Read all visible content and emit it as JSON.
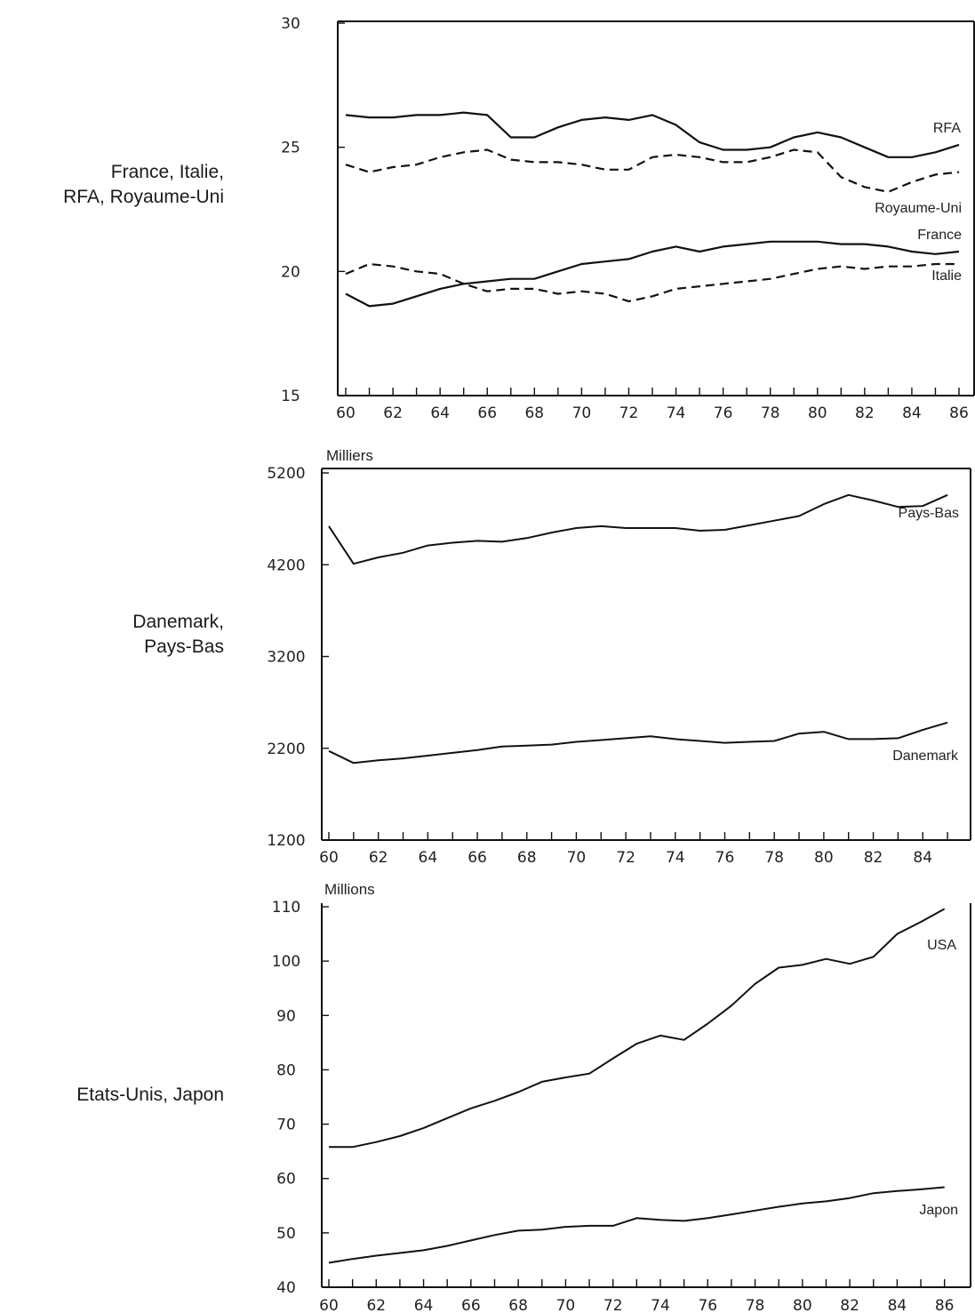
{
  "chart_data": [
    {
      "type": "line",
      "row_label": [
        "France, Italie,",
        "RFA, Royaume-Uni"
      ],
      "unit": "",
      "x_ticks": [
        "60",
        "62",
        "64",
        "66",
        "68",
        "70",
        "72",
        "74",
        "76",
        "78",
        "80",
        "82",
        "84",
        "86"
      ],
      "y_ticks": [
        "15",
        "20",
        "25",
        "30"
      ],
      "xlim": [
        60,
        86
      ],
      "ylim": [
        15,
        30
      ],
      "grid": false,
      "x": [
        60,
        61,
        62,
        63,
        64,
        65,
        66,
        67,
        68,
        69,
        70,
        71,
        72,
        73,
        74,
        75,
        76,
        77,
        78,
        79,
        80,
        81,
        82,
        83,
        84,
        85,
        86
      ],
      "series": [
        {
          "name": "RFA",
          "dash": "solid",
          "values": [
            26.3,
            26.2,
            26.2,
            26.3,
            26.3,
            26.4,
            26.3,
            25.4,
            25.4,
            25.8,
            26.1,
            26.2,
            26.1,
            26.3,
            25.9,
            25.2,
            24.9,
            24.9,
            25.0,
            25.4,
            25.6,
            25.4,
            25.0,
            24.6,
            24.6,
            24.8,
            25.1
          ]
        },
        {
          "name": "Royaume-Uni",
          "dash": "dashed",
          "values": [
            24.3,
            24.0,
            24.2,
            24.3,
            24.6,
            24.8,
            24.9,
            24.5,
            24.4,
            24.4,
            24.3,
            24.1,
            24.1,
            24.6,
            24.7,
            24.6,
            24.4,
            24.4,
            24.6,
            24.9,
            24.8,
            23.8,
            23.4,
            23.2,
            23.6,
            23.9,
            24.0
          ]
        },
        {
          "name": "France",
          "dash": "solid",
          "values": [
            19.1,
            18.6,
            18.7,
            19.0,
            19.3,
            19.5,
            19.6,
            19.7,
            19.7,
            20.0,
            20.3,
            20.4,
            20.5,
            20.8,
            21.0,
            20.8,
            21.0,
            21.1,
            21.2,
            21.2,
            21.2,
            21.1,
            21.1,
            21.0,
            20.8,
            20.7,
            20.8
          ]
        },
        {
          "name": "Italie",
          "dash": "dashed",
          "values": [
            19.9,
            20.3,
            20.2,
            20.0,
            19.9,
            19.5,
            19.2,
            19.3,
            19.3,
            19.1,
            19.2,
            19.1,
            18.8,
            19.0,
            19.3,
            19.4,
            19.5,
            19.6,
            19.7,
            19.9,
            20.1,
            20.2,
            20.1,
            20.2,
            20.2,
            20.3,
            20.3
          ]
        }
      ]
    },
    {
      "type": "line",
      "row_label": [
        "Danemark,",
        "Pays-Bas"
      ],
      "unit": "Milliers",
      "x_ticks": [
        "60",
        "62",
        "64",
        "66",
        "68",
        "70",
        "72",
        "74",
        "76",
        "78",
        "80",
        "82",
        "84"
      ],
      "y_ticks": [
        "1200",
        "2200",
        "3200",
        "4200",
        "5200"
      ],
      "xlim": [
        60,
        85.5
      ],
      "ylim": [
        1200,
        5200
      ],
      "grid": false,
      "x": [
        60,
        61,
        62,
        63,
        64,
        65,
        66,
        67,
        68,
        69,
        70,
        71,
        72,
        73,
        74,
        75,
        76,
        77,
        78,
        79,
        80,
        81,
        82,
        83,
        84,
        85
      ],
      "series": [
        {
          "name": "Pays-Bas",
          "dash": "solid",
          "values": [
            4620,
            4210,
            4280,
            4330,
            4410,
            4440,
            4460,
            4450,
            4490,
            4550,
            4600,
            4620,
            4600,
            4600,
            4600,
            4570,
            4580,
            4630,
            4680,
            4730,
            4860,
            4960,
            4900,
            4830,
            4840,
            4960
          ]
        },
        {
          "name": "Danemark",
          "dash": "solid",
          "values": [
            2170,
            2040,
            2070,
            2090,
            2120,
            2150,
            2180,
            2220,
            2230,
            2240,
            2270,
            2290,
            2310,
            2330,
            2300,
            2280,
            2260,
            2270,
            2280,
            2360,
            2380,
            2300,
            2300,
            2310,
            2400,
            2480
          ]
        }
      ]
    },
    {
      "type": "line",
      "row_label": [
        "Etats-Unis, Japon"
      ],
      "unit": "Millions",
      "x_ticks": [
        "60",
        "62",
        "64",
        "66",
        "68",
        "70",
        "72",
        "74",
        "76",
        "78",
        "80",
        "82",
        "84",
        "86"
      ],
      "y_ticks": [
        "40",
        "50",
        "60",
        "70",
        "80",
        "90",
        "100",
        "110"
      ],
      "xlim": [
        60,
        86.5
      ],
      "ylim": [
        40,
        110
      ],
      "grid": false,
      "x": [
        60,
        61,
        62,
        63,
        64,
        65,
        66,
        67,
        68,
        69,
        70,
        71,
        72,
        73,
        74,
        75,
        76,
        77,
        78,
        79,
        80,
        81,
        82,
        83,
        84,
        85,
        86
      ],
      "series": [
        {
          "name": "USA",
          "dash": "solid",
          "values": [
            65.8,
            65.8,
            66.7,
            67.8,
            69.3,
            71.1,
            72.9,
            74.3,
            75.9,
            77.8,
            78.6,
            79.3,
            82.1,
            84.8,
            86.3,
            85.5,
            88.5,
            91.8,
            95.8,
            98.8,
            99.3,
            100.4,
            99.5,
            100.8,
            105.0,
            107.2,
            109.6
          ]
        },
        {
          "name": "Japon",
          "dash": "solid",
          "values": [
            44.5,
            45.2,
            45.8,
            46.3,
            46.8,
            47.6,
            48.6,
            49.6,
            50.4,
            50.6,
            51.1,
            51.3,
            51.3,
            52.7,
            52.4,
            52.2,
            52.7,
            53.4,
            54.1,
            54.8,
            55.4,
            55.8,
            56.4,
            57.3,
            57.7,
            58.0,
            58.4
          ]
        }
      ]
    }
  ]
}
